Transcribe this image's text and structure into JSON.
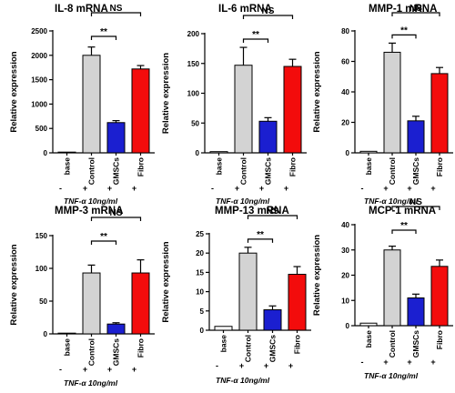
{
  "chart_data": [
    {
      "type": "bar",
      "title": "IL-8 mRNA",
      "ylabel": "Relative expression",
      "categories": [
        "base",
        "Control",
        "GMSCs",
        "Fibro"
      ],
      "treatment_signs": [
        "-",
        "+",
        "+",
        "+"
      ],
      "treatment_label": "TNF-α 10ng/ml",
      "colors": [
        "#ffffff",
        "#d3d3d3",
        "#1b1fd0",
        "#f30c0c"
      ],
      "values": [
        0,
        2000,
        620,
        1720
      ],
      "errors": [
        0,
        170,
        40,
        70
      ],
      "ylim": [
        0,
        2500
      ],
      "yticks": [
        0,
        500,
        1000,
        1500,
        2000,
        2500
      ],
      "brackets": [
        {
          "from": "Control",
          "to": "GMSCs",
          "label": "**"
        },
        {
          "from": "Control",
          "to": "Fibro",
          "label": "NS"
        }
      ]
    },
    {
      "type": "bar",
      "title": "IL-6 mRNA",
      "ylabel": "Relative expression",
      "categories": [
        "base",
        "Control",
        "GMSCs",
        "Fibro"
      ],
      "treatment_signs": [
        "-",
        "+",
        "+",
        "+"
      ],
      "treatment_label": "TNF-α 10ng/ml",
      "colors": [
        "#ffffff",
        "#d3d3d3",
        "#1b1fd0",
        "#f30c0c"
      ],
      "values": [
        2,
        147,
        53,
        145
      ],
      "errors": [
        0,
        30,
        6,
        12
      ],
      "ylim": [
        0,
        200
      ],
      "yticks": [
        0,
        50,
        100,
        150,
        200
      ],
      "brackets": [
        {
          "from": "Control",
          "to": "GMSCs",
          "label": "**"
        },
        {
          "from": "Control",
          "to": "Fibro",
          "label": "NS"
        }
      ]
    },
    {
      "type": "bar",
      "title": "MMP-1 mRNA",
      "ylabel": "Relative expression",
      "categories": [
        "base",
        "Control",
        "GMSCs",
        "Fibro"
      ],
      "treatment_signs": [
        "-",
        "+",
        "+",
        "+"
      ],
      "treatment_label": "TNF-α 10ng/ml",
      "colors": [
        "#ffffff",
        "#d3d3d3",
        "#1b1fd0",
        "#f30c0c"
      ],
      "values": [
        1,
        66,
        21,
        52
      ],
      "errors": [
        0,
        6,
        3,
        4
      ],
      "ylim": [
        0,
        80
      ],
      "yticks": [
        0,
        20,
        40,
        60,
        80
      ],
      "brackets": [
        {
          "from": "Control",
          "to": "GMSCs",
          "label": "**"
        },
        {
          "from": "Control",
          "to": "Fibro",
          "label": "NS"
        }
      ]
    },
    {
      "type": "bar",
      "title": "MMP-3 mRNA",
      "ylabel": "Relative expression",
      "categories": [
        "base",
        "Control",
        "GMSCs",
        "Fibro"
      ],
      "treatment_signs": [
        "-",
        "+",
        "+",
        "+"
      ],
      "treatment_label": "TNF-α 10ng/ml",
      "colors": [
        "#ffffff",
        "#d3d3d3",
        "#1b1fd0",
        "#f30c0c"
      ],
      "values": [
        1,
        93,
        15,
        93
      ],
      "errors": [
        0,
        12,
        2,
        20
      ],
      "ylim": [
        0,
        150
      ],
      "yticks": [
        0,
        50,
        100,
        150
      ],
      "brackets": [
        {
          "from": "Control",
          "to": "GMSCs",
          "label": "**"
        },
        {
          "from": "Control",
          "to": "Fibro",
          "label": "NS"
        }
      ]
    },
    {
      "type": "bar",
      "title": "MMP-13 mRNA",
      "ylabel": "Relative expression",
      "categories": [
        "base",
        "Control",
        "GMSCs",
        "Fibro"
      ],
      "treatment_signs": [
        "-",
        "+",
        "+",
        "+"
      ],
      "treatment_label": "TNF-α 10ng/ml",
      "colors": [
        "#ffffff",
        "#d3d3d3",
        "#1b1fd0",
        "#f30c0c"
      ],
      "values": [
        1,
        20,
        5.3,
        14.5
      ],
      "errors": [
        0,
        1.5,
        1,
        2
      ],
      "ylim": [
        0,
        25
      ],
      "yticks": [
        0,
        5,
        10,
        15,
        20,
        25
      ],
      "brackets": [
        {
          "from": "Control",
          "to": "GMSCs",
          "label": "**"
        },
        {
          "from": "Control",
          "to": "Fibro",
          "label": "NS"
        }
      ]
    },
    {
      "type": "bar",
      "title": "MCP-1 mRNA",
      "ylabel": "Relative expression",
      "categories": [
        "base",
        "Control",
        "GMSCs",
        "Fibro"
      ],
      "treatment_signs": [
        "-",
        "+",
        "+",
        "+"
      ],
      "treatment_label": "TNF-α 10ng/ml",
      "colors": [
        "#ffffff",
        "#d3d3d3",
        "#1b1fd0",
        "#f30c0c"
      ],
      "values": [
        1,
        30,
        11,
        23.5
      ],
      "errors": [
        0,
        1.5,
        1.5,
        2.5
      ],
      "ylim": [
        0,
        40
      ],
      "yticks": [
        0,
        10,
        20,
        30,
        40
      ],
      "brackets": [
        {
          "from": "Control",
          "to": "GMSCs",
          "label": "**"
        },
        {
          "from": "Control",
          "to": "Fibro",
          "label": "NS"
        }
      ]
    }
  ]
}
